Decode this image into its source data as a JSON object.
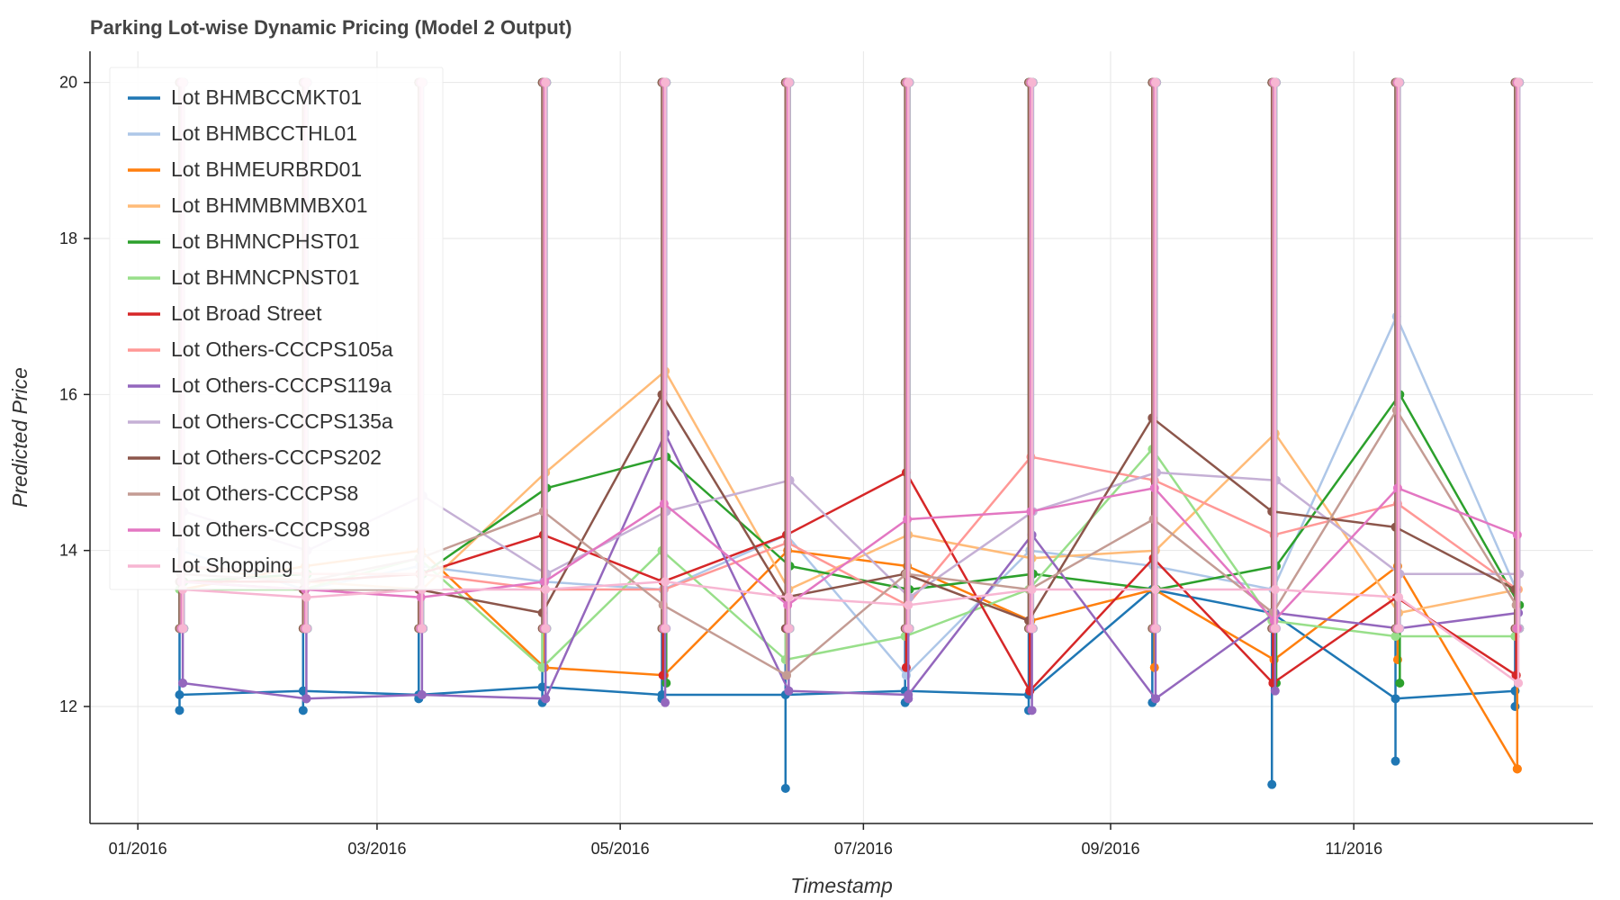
{
  "chart_data": {
    "type": "line",
    "title": "Parking Lot-wise Dynamic Pricing (Model 2 Output)",
    "xlabel": "Timestamp",
    "ylabel": "Predicted Price",
    "xlim": [
      "2015-12-20",
      "2016-12-31"
    ],
    "ylim": [
      10.5,
      20.4
    ],
    "x_ticks": [
      {
        "date": "2016-01-01",
        "label": "01/2016"
      },
      {
        "date": "2016-03-01",
        "label": "03/2016"
      },
      {
        "date": "2016-05-01",
        "label": "05/2016"
      },
      {
        "date": "2016-07-01",
        "label": "07/2016"
      },
      {
        "date": "2016-09-01",
        "label": "09/2016"
      },
      {
        "date": "2016-11-01",
        "label": "11/2016"
      }
    ],
    "y_ticks": [
      12,
      14,
      16,
      18,
      20
    ],
    "grid": true,
    "legend_position": "top-left",
    "markers": true,
    "cluster_dates": [
      "2016-01-12",
      "2016-02-12",
      "2016-03-12",
      "2016-04-12",
      "2016-05-12",
      "2016-06-12",
      "2016-07-12",
      "2016-08-12",
      "2016-09-12",
      "2016-10-12",
      "2016-11-12",
      "2016-12-12"
    ],
    "series": [
      {
        "name": "Lot BHMBCCMKT01",
        "color": "#1f77b4",
        "values": [
          12.15,
          12.2,
          12.15,
          12.25,
          12.15,
          12.15,
          12.2,
          12.15,
          13.5,
          13.2,
          12.1,
          12.2
        ],
        "spike_min": [
          11.95,
          11.95,
          12.1,
          12.05,
          12.1,
          10.95,
          12.05,
          11.95,
          12.05,
          11.0,
          11.3,
          12.0
        ]
      },
      {
        "name": "Lot BHMBCCTHL01",
        "color": "#aec7e8",
        "values": [
          14.0,
          13.5,
          13.8,
          13.6,
          13.5,
          14.2,
          12.4,
          14.0,
          13.8,
          13.5,
          17.0,
          13.5
        ],
        "spike_min": [
          13.0,
          13.0,
          13.0,
          13.0,
          13.0,
          13.0,
          12.4,
          13.0,
          13.0,
          13.0,
          13.0,
          13.0
        ]
      },
      {
        "name": "Lot BHMEURBRD01",
        "color": "#ff7f0e",
        "values": [
          13.5,
          13.8,
          14.0,
          12.5,
          12.4,
          14.0,
          13.8,
          13.1,
          13.5,
          12.6,
          13.8,
          11.2
        ],
        "spike_min": [
          13.0,
          13.0,
          13.0,
          12.5,
          12.4,
          13.0,
          13.0,
          13.0,
          12.5,
          12.6,
          12.6,
          11.2
        ]
      },
      {
        "name": "Lot BHMMBMMBX01",
        "color": "#ffbb78",
        "values": [
          13.8,
          13.6,
          13.5,
          15.0,
          16.3,
          13.5,
          14.2,
          13.9,
          14.0,
          15.5,
          13.2,
          13.5
        ],
        "spike_min": [
          13.0,
          13.0,
          13.0,
          13.0,
          13.0,
          13.0,
          13.0,
          13.0,
          13.0,
          13.0,
          13.0,
          13.0
        ]
      },
      {
        "name": "Lot BHMNCPHST01",
        "color": "#2ca02c",
        "values": [
          13.6,
          13.7,
          13.7,
          14.8,
          15.2,
          13.8,
          13.5,
          13.7,
          13.5,
          13.8,
          16.0,
          13.3
        ],
        "spike_min": [
          13.0,
          13.0,
          13.0,
          13.0,
          12.3,
          13.0,
          13.0,
          13.0,
          13.0,
          12.3,
          12.3,
          13.0
        ]
      },
      {
        "name": "Lot BHMNCPNST01",
        "color": "#98df8a",
        "values": [
          13.5,
          13.5,
          13.9,
          12.5,
          14.0,
          12.6,
          12.9,
          13.5,
          15.3,
          13.1,
          12.9,
          12.9
        ],
        "spike_min": [
          13.0,
          13.0,
          13.0,
          12.5,
          13.0,
          12.6,
          12.9,
          13.0,
          13.0,
          13.0,
          12.9,
          12.9
        ]
      },
      {
        "name": "Lot Broad Street",
        "color": "#d62728",
        "values": [
          13.6,
          13.6,
          13.7,
          14.2,
          13.6,
          14.2,
          15.0,
          12.2,
          13.9,
          12.3,
          13.4,
          12.4
        ],
        "spike_min": [
          13.0,
          13.0,
          13.0,
          13.0,
          12.4,
          13.0,
          12.5,
          12.2,
          13.0,
          12.3,
          13.0,
          12.4
        ]
      },
      {
        "name": "Lot Others-CCCPS105a",
        "color": "#ff9896",
        "values": [
          13.8,
          13.7,
          13.7,
          13.5,
          13.5,
          14.1,
          13.3,
          15.2,
          14.9,
          14.2,
          14.6,
          13.5
        ],
        "spike_min": [
          13.0,
          13.0,
          13.0,
          13.0,
          13.0,
          13.0,
          13.0,
          13.0,
          13.0,
          13.0,
          13.0,
          13.0
        ]
      },
      {
        "name": "Lot Others-CCCPS119a",
        "color": "#9467bd",
        "values": [
          12.3,
          12.1,
          12.15,
          12.1,
          15.5,
          12.2,
          12.15,
          14.2,
          12.1,
          13.2,
          13.0,
          13.2
        ],
        "spike_min": [
          12.3,
          12.1,
          12.15,
          12.1,
          12.05,
          12.2,
          12.1,
          11.95,
          12.1,
          12.2,
          13.0,
          13.2
        ]
      },
      {
        "name": "Lot Others-CCCPS135a",
        "color": "#c5b0d5",
        "values": [
          14.5,
          14.0,
          14.7,
          13.7,
          14.5,
          14.9,
          13.4,
          14.5,
          15.0,
          14.9,
          13.7,
          13.7
        ],
        "spike_min": [
          13.0,
          13.0,
          13.0,
          13.0,
          13.0,
          13.0,
          13.0,
          13.0,
          13.0,
          13.0,
          13.0,
          13.0
        ]
      },
      {
        "name": "Lot Others-CCCPS202",
        "color": "#8c564b",
        "values": [
          13.6,
          13.5,
          13.5,
          13.2,
          16.0,
          13.4,
          13.7,
          13.1,
          15.7,
          14.5,
          14.3,
          13.5
        ],
        "spike_min": [
          13.0,
          13.0,
          13.0,
          13.0,
          13.0,
          13.0,
          13.0,
          13.0,
          13.0,
          13.0,
          13.0,
          13.0
        ]
      },
      {
        "name": "Lot Others-CCCPS8",
        "color": "#c49c94",
        "values": [
          13.7,
          13.6,
          13.9,
          14.5,
          13.3,
          12.4,
          13.7,
          13.5,
          14.4,
          13.2,
          15.8,
          13.3
        ],
        "spike_min": [
          13.0,
          13.0,
          13.0,
          13.0,
          13.0,
          12.4,
          13.0,
          13.0,
          13.0,
          13.0,
          13.0,
          13.0
        ]
      },
      {
        "name": "Lot Others-CCCPS98",
        "color": "#e377c2",
        "values": [
          13.6,
          13.5,
          13.4,
          13.6,
          14.6,
          13.3,
          14.4,
          14.5,
          14.8,
          13.1,
          14.8,
          14.2
        ],
        "spike_min": [
          13.0,
          13.0,
          13.0,
          13.0,
          13.0,
          13.0,
          13.0,
          13.0,
          13.0,
          13.0,
          13.0,
          13.0
        ]
      },
      {
        "name": "Lot Shopping",
        "color": "#f7b6d2",
        "values": [
          13.5,
          13.4,
          13.5,
          13.5,
          13.6,
          13.4,
          13.3,
          13.5,
          13.5,
          13.5,
          13.4,
          12.3
        ],
        "spike_min": [
          13.0,
          13.0,
          13.0,
          13.0,
          13.0,
          13.0,
          13.0,
          13.0,
          13.0,
          13.0,
          13.0,
          12.3
        ]
      }
    ]
  }
}
